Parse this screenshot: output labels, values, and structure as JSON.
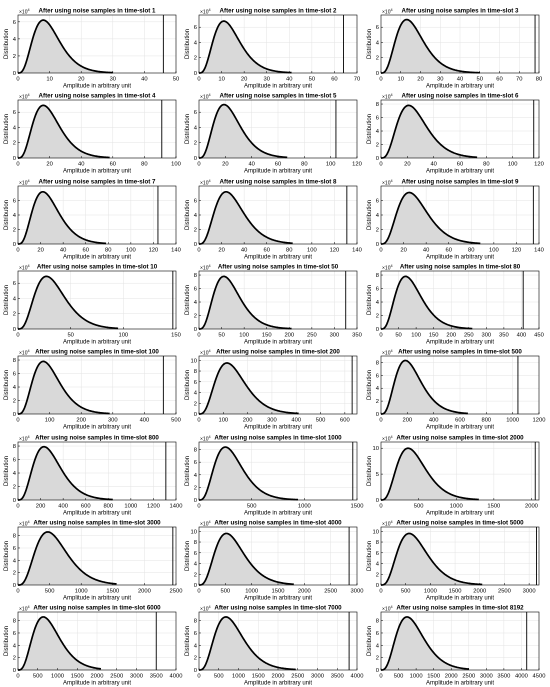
{
  "common": {
    "title_prefix": "After using noise samples in time-slot ",
    "xlabel": "Amplitude in arbitrary unit",
    "ylabel": "Distribution",
    "y_multiplier": "×10",
    "y_multiplier_exp": "4",
    "fill_color": "#d9d9d9",
    "curve_color": "#000000",
    "grid": true
  },
  "chart_data": [
    {
      "type": "area",
      "title": "After using noise samples in time-slot 1",
      "slot": "1",
      "xlim": [
        0,
        50
      ],
      "xticks": [
        0,
        10,
        20,
        30,
        40,
        50
      ],
      "ylim": [
        0,
        6.8
      ],
      "yticks": [
        0,
        2,
        4,
        6
      ],
      "peak_x": 8,
      "peak_y": 6.2,
      "tail_end": 30,
      "vline": 46,
      "xlabel": "Amplitude in arbitrary unit",
      "ylabel": "Distribution"
    },
    {
      "type": "area",
      "title": "After using noise samples in time-slot 2",
      "slot": "2",
      "xlim": [
        0,
        70
      ],
      "xticks": [
        0,
        10,
        20,
        30,
        40,
        50,
        60,
        70
      ],
      "ylim": [
        0,
        7.6
      ],
      "yticks": [
        0,
        2,
        4,
        6
      ],
      "peak_x": 11,
      "peak_y": 6.8,
      "tail_end": 41,
      "vline": 64,
      "xlabel": "Amplitude in arbitrary unit",
      "ylabel": "Distribution"
    },
    {
      "type": "area",
      "title": "After using noise samples in time-slot 3",
      "slot": "3",
      "xlim": [
        0,
        80
      ],
      "xticks": [
        0,
        10,
        20,
        30,
        40,
        50,
        60,
        70,
        80
      ],
      "ylim": [
        0,
        7.6
      ],
      "yticks": [
        0,
        2,
        4,
        6
      ],
      "peak_x": 13,
      "peak_y": 7.0,
      "tail_end": 50,
      "vline": 78,
      "xlabel": "Amplitude in arbitrary unit",
      "ylabel": "Distribution"
    },
    {
      "type": "area",
      "title": "After using noise samples in time-slot 4",
      "slot": "4",
      "xlim": [
        0,
        100
      ],
      "xticks": [
        0,
        20,
        40,
        60,
        80,
        100
      ],
      "ylim": [
        0,
        7.6
      ],
      "yticks": [
        0,
        2,
        4,
        6
      ],
      "peak_x": 16,
      "peak_y": 6.9,
      "tail_end": 58,
      "vline": 91,
      "xlabel": "Amplitude in arbitrary unit",
      "ylabel": "Distribution"
    },
    {
      "type": "area",
      "title": "After using noise samples in time-slot 5",
      "slot": "5",
      "xlim": [
        0,
        120
      ],
      "xticks": [
        0,
        20,
        40,
        60,
        80,
        100,
        120
      ],
      "ylim": [
        0,
        7.6
      ],
      "yticks": [
        0,
        2,
        4,
        6
      ],
      "peak_x": 19,
      "peak_y": 7.0,
      "tail_end": 67,
      "vline": 104,
      "xlabel": "Amplitude in arbitrary unit",
      "ylabel": "Distribution"
    },
    {
      "type": "area",
      "title": "After using noise samples in time-slot 6",
      "slot": "6",
      "xlim": [
        0,
        120
      ],
      "xticks": [
        0,
        20,
        40,
        60,
        80,
        100,
        120
      ],
      "ylim": [
        0,
        8.6
      ],
      "yticks": [
        0,
        2,
        4,
        6,
        8
      ],
      "peak_x": 21,
      "peak_y": 7.8,
      "tail_end": 73,
      "vline": 116,
      "xlabel": "Amplitude in arbitrary unit",
      "ylabel": "Distribution"
    },
    {
      "type": "area",
      "title": "After using noise samples in time-slot 7",
      "slot": "7",
      "xlim": [
        0,
        140
      ],
      "xticks": [
        0,
        20,
        40,
        60,
        80,
        100,
        120,
        140
      ],
      "ylim": [
        0,
        8.0
      ],
      "yticks": [
        0,
        2,
        4,
        6
      ],
      "peak_x": 22,
      "peak_y": 7.2,
      "tail_end": 78,
      "vline": 124,
      "xlabel": "Amplitude in arbitrary unit",
      "ylabel": "Distribution"
    },
    {
      "type": "area",
      "title": "After using noise samples in time-slot 8",
      "slot": "8",
      "xlim": [
        0,
        140
      ],
      "xticks": [
        0,
        20,
        40,
        60,
        80,
        100,
        120,
        140
      ],
      "ylim": [
        0,
        8.0
      ],
      "yticks": [
        0,
        2,
        4,
        6
      ],
      "peak_x": 24,
      "peak_y": 7.2,
      "tail_end": 83,
      "vline": 131,
      "xlabel": "Amplitude in arbitrary unit",
      "ylabel": "Distribution"
    },
    {
      "type": "area",
      "title": "After using noise samples in time-slot 9",
      "slot": "9",
      "xlim": [
        0,
        140
      ],
      "xticks": [
        0,
        20,
        40,
        60,
        80,
        100,
        120,
        140
      ],
      "ylim": [
        0,
        8.0
      ],
      "yticks": [
        0,
        2,
        4,
        6
      ],
      "peak_x": 25,
      "peak_y": 7.1,
      "tail_end": 88,
      "vline": 135,
      "xlabel": "Amplitude in arbitrary unit",
      "ylabel": "Distribution"
    },
    {
      "type": "area",
      "title": "After using noise samples in time-slot 10",
      "slot": "10",
      "xlim": [
        0,
        150
      ],
      "xticks": [
        0,
        50,
        100,
        150
      ],
      "ylim": [
        0,
        7.6
      ],
      "yticks": [
        0,
        2,
        4,
        6
      ],
      "peak_x": 27,
      "peak_y": 6.9,
      "tail_end": 95,
      "vline": 147,
      "xlabel": "Amplitude in arbitrary unit",
      "ylabel": "Distribution"
    },
    {
      "type": "area",
      "title": "After using noise samples in time-slot 50",
      "slot": "50",
      "xlim": [
        0,
        350
      ],
      "xticks": [
        0,
        50,
        100,
        150,
        200,
        250,
        300,
        350
      ],
      "ylim": [
        0,
        8.6
      ],
      "yticks": [
        0,
        2,
        4,
        6,
        8
      ],
      "peak_x": 55,
      "peak_y": 7.8,
      "tail_end": 205,
      "vline": 325,
      "xlabel": "Amplitude in arbitrary unit",
      "ylabel": "Distribution"
    },
    {
      "type": "area",
      "title": "After using noise samples in time-slot 80",
      "slot": "80",
      "xlim": [
        0,
        450
      ],
      "xticks": [
        0,
        50,
        100,
        150,
        200,
        250,
        300,
        350,
        400,
        450
      ],
      "ylim": [
        0,
        8.6
      ],
      "yticks": [
        0,
        2,
        4,
        6,
        8
      ],
      "peak_x": 70,
      "peak_y": 7.8,
      "tail_end": 260,
      "vline": 405,
      "xlabel": "Amplitude in arbitrary unit",
      "ylabel": "Distribution"
    },
    {
      "type": "area",
      "title": "After using noise samples in time-slot 100",
      "slot": "100",
      "xlim": [
        0,
        500
      ],
      "xticks": [
        0,
        100,
        200,
        300,
        400,
        500
      ],
      "ylim": [
        0,
        8.6
      ],
      "yticks": [
        0,
        2,
        4,
        6,
        8
      ],
      "peak_x": 80,
      "peak_y": 7.8,
      "tail_end": 290,
      "vline": 460,
      "xlabel": "Amplitude in arbitrary unit",
      "ylabel": "Distribution"
    },
    {
      "type": "area",
      "title": "After using noise samples in time-slot 200",
      "slot": "200",
      "xlim": [
        0,
        650
      ],
      "xticks": [
        0,
        100,
        200,
        300,
        400,
        500,
        600
      ],
      "ylim": [
        0,
        10.8
      ],
      "yticks": [
        0,
        2,
        4,
        6,
        8,
        10
      ],
      "peak_x": 115,
      "peak_y": 9.5,
      "tail_end": 410,
      "vline": 630,
      "xlabel": "Amplitude in arbitrary unit",
      "ylabel": "Distribution"
    },
    {
      "type": "area",
      "title": "After using noise samples in time-slot 500",
      "slot": "500",
      "xlim": [
        0,
        1200
      ],
      "xticks": [
        0,
        200,
        400,
        600,
        800,
        1000,
        1200
      ],
      "ylim": [
        0,
        9.0
      ],
      "yticks": [
        0,
        2,
        4,
        6,
        8
      ],
      "peak_x": 185,
      "peak_y": 8.3,
      "tail_end": 660,
      "vline": 1040,
      "xlabel": "Amplitude in arbitrary unit",
      "ylabel": "Distribution"
    },
    {
      "type": "area",
      "title": "After using noise samples in time-slot 800",
      "slot": "800",
      "xlim": [
        0,
        1400
      ],
      "xticks": [
        0,
        200,
        400,
        600,
        800,
        1000,
        1200,
        1400
      ],
      "ylim": [
        0,
        8.6
      ],
      "yticks": [
        0,
        2,
        4,
        6,
        8
      ],
      "peak_x": 230,
      "peak_y": 7.9,
      "tail_end": 840,
      "vline": 1310,
      "xlabel": "Amplitude in arbitrary unit",
      "ylabel": "Distribution"
    },
    {
      "type": "area",
      "title": "After using noise samples in time-slot 1000",
      "slot": "1000",
      "xlim": [
        0,
        1500
      ],
      "xticks": [
        0,
        500,
        1000,
        1500
      ],
      "ylim": [
        0,
        9.2
      ],
      "yticks": [
        0,
        2,
        4,
        6,
        8
      ],
      "peak_x": 250,
      "peak_y": 8.4,
      "tail_end": 940,
      "vline": 1460,
      "xlabel": "Amplitude in arbitrary unit",
      "ylabel": "Distribution"
    },
    {
      "type": "area",
      "title": "After using noise samples in time-slot 2000",
      "slot": "2000",
      "xlim": [
        0,
        2100
      ],
      "xticks": [
        0,
        500,
        1000,
        1500,
        2000
      ],
      "ylim": [
        0,
        11.2
      ],
      "yticks": [
        0,
        5,
        10
      ],
      "peak_x": 360,
      "peak_y": 10.0,
      "tail_end": 1300,
      "vline": 2050,
      "xlabel": "Amplitude in arbitrary unit",
      "ylabel": "Distribution"
    },
    {
      "type": "area",
      "title": "After using noise samples in time-slot 3000",
      "slot": "3000",
      "xlim": [
        0,
        2500
      ],
      "xticks": [
        0,
        500,
        1000,
        1500,
        2000,
        2500
      ],
      "ylim": [
        0,
        9.4
      ],
      "yticks": [
        0,
        2,
        4,
        6,
        8
      ],
      "peak_x": 470,
      "peak_y": 8.6,
      "tail_end": 1560,
      "vline": 2450,
      "xlabel": "Amplitude in arbitrary unit",
      "ylabel": "Distribution"
    },
    {
      "type": "area",
      "title": "After using noise samples in time-slot 4000",
      "slot": "4000",
      "xlim": [
        0,
        3000
      ],
      "xticks": [
        0,
        500,
        1000,
        1500,
        2000,
        2500,
        3000
      ],
      "ylim": [
        0,
        10.8
      ],
      "yticks": [
        0,
        2,
        4,
        6,
        8,
        10
      ],
      "peak_x": 520,
      "peak_y": 9.6,
      "tail_end": 1800,
      "vline": 2850,
      "xlabel": "Amplitude in arbitrary unit",
      "ylabel": "Distribution"
    },
    {
      "type": "area",
      "title": "After using noise samples in time-slot 5000",
      "slot": "5000",
      "xlim": [
        0,
        3200
      ],
      "xticks": [
        0,
        500,
        1000,
        1500,
        2000,
        2500,
        3000
      ],
      "ylim": [
        0,
        10.8
      ],
      "yticks": [
        0,
        2,
        4,
        6,
        8,
        10
      ],
      "peak_x": 570,
      "peak_y": 9.6,
      "tail_end": 2050,
      "vline": 3150,
      "xlabel": "Amplitude in arbitrary unit",
      "ylabel": "Distribution"
    },
    {
      "type": "area",
      "title": "After using noise samples in time-slot 6000",
      "slot": "6000",
      "xlim": [
        0,
        4000
      ],
      "xticks": [
        0,
        500,
        1000,
        1500,
        2000,
        2500,
        3000,
        3500,
        4000
      ],
      "ylim": [
        0,
        9.4
      ],
      "yticks": [
        0,
        2,
        4,
        6,
        8
      ],
      "peak_x": 640,
      "peak_y": 8.6,
      "tail_end": 2100,
      "vline": 3500,
      "xlabel": "Amplitude in arbitrary unit",
      "ylabel": "Distribution"
    },
    {
      "type": "area",
      "title": "After using noise samples in time-slot 7000",
      "slot": "7000",
      "xlim": [
        0,
        4000
      ],
      "xticks": [
        0,
        500,
        1000,
        1500,
        2000,
        2500,
        3000,
        3500,
        4000
      ],
      "ylim": [
        0,
        9.4
      ],
      "yticks": [
        0,
        2,
        4,
        6,
        8
      ],
      "peak_x": 680,
      "peak_y": 8.6,
      "tail_end": 2450,
      "vline": 3800,
      "xlabel": "Amplitude in arbitrary unit",
      "ylabel": "Distribution"
    },
    {
      "type": "area",
      "title": "After using noise samples in time-slot 8192",
      "slot": "8192",
      "xlim": [
        0,
        4500
      ],
      "xticks": [
        0,
        500,
        1000,
        1500,
        2000,
        2500,
        3000,
        3500,
        4000,
        4500
      ],
      "ylim": [
        0,
        9.4
      ],
      "yticks": [
        0,
        2,
        4,
        6,
        8
      ],
      "peak_x": 740,
      "peak_y": 8.6,
      "tail_end": 2500,
      "vline": 4150,
      "xlabel": "Amplitude in arbitrary unit",
      "ylabel": "Distribution"
    }
  ]
}
